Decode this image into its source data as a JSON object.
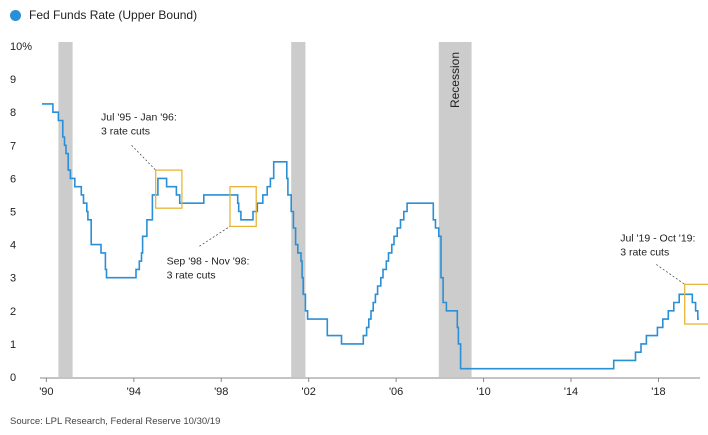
{
  "chart_data": {
    "type": "line",
    "title": "",
    "legend": [
      "Fed Funds Rate (Upper Bound)"
    ],
    "ylabel": "",
    "xlabel": "",
    "y_unit": "%",
    "ylim": [
      0,
      10
    ],
    "xlim": [
      1989.8,
      2019.9
    ],
    "x_ticks": [
      {
        "value": 1990,
        "label": "'90"
      },
      {
        "value": 1994,
        "label": "'94"
      },
      {
        "value": 1998,
        "label": "'98"
      },
      {
        "value": 2002,
        "label": "'02"
      },
      {
        "value": 2006,
        "label": "'06"
      },
      {
        "value": 2010,
        "label": "'10"
      },
      {
        "value": 2014,
        "label": "'14"
      },
      {
        "value": 2018,
        "label": "'18"
      }
    ],
    "y_ticks": [
      {
        "value": 0,
        "label": "0"
      },
      {
        "value": 1,
        "label": "1"
      },
      {
        "value": 2,
        "label": "2"
      },
      {
        "value": 3,
        "label": "3"
      },
      {
        "value": 4,
        "label": "4"
      },
      {
        "value": 5,
        "label": "5"
      },
      {
        "value": 6,
        "label": "6"
      },
      {
        "value": 7,
        "label": "7"
      },
      {
        "value": 8,
        "label": "8"
      },
      {
        "value": 9,
        "label": "9"
      },
      {
        "value": 10,
        "label": "10%"
      }
    ],
    "series": [
      {
        "name": "Fed Funds Rate (Upper Bound)",
        "color": "#2b8fd6",
        "points": [
          [
            1989.8,
            8.25
          ],
          [
            1990.3,
            8.25
          ],
          [
            1990.3,
            8.0
          ],
          [
            1990.55,
            8.0
          ],
          [
            1990.55,
            7.75
          ],
          [
            1990.75,
            7.75
          ],
          [
            1990.75,
            7.25
          ],
          [
            1990.83,
            7.25
          ],
          [
            1990.83,
            7.0
          ],
          [
            1990.9,
            7.0
          ],
          [
            1990.9,
            6.75
          ],
          [
            1991.0,
            6.75
          ],
          [
            1991.0,
            6.25
          ],
          [
            1991.1,
            6.25
          ],
          [
            1991.1,
            6.0
          ],
          [
            1991.3,
            6.0
          ],
          [
            1991.3,
            5.75
          ],
          [
            1991.6,
            5.75
          ],
          [
            1991.6,
            5.5
          ],
          [
            1991.7,
            5.5
          ],
          [
            1991.7,
            5.25
          ],
          [
            1991.85,
            5.25
          ],
          [
            1991.85,
            5.0
          ],
          [
            1991.9,
            5.0
          ],
          [
            1991.9,
            4.75
          ],
          [
            1992.05,
            4.75
          ],
          [
            1992.05,
            4.0
          ],
          [
            1992.5,
            4.0
          ],
          [
            1992.5,
            3.75
          ],
          [
            1992.7,
            3.75
          ],
          [
            1992.7,
            3.25
          ],
          [
            1992.75,
            3.25
          ],
          [
            1992.75,
            3.0
          ],
          [
            1994.1,
            3.0
          ],
          [
            1994.1,
            3.25
          ],
          [
            1994.25,
            3.25
          ],
          [
            1994.25,
            3.5
          ],
          [
            1994.35,
            3.5
          ],
          [
            1994.35,
            3.75
          ],
          [
            1994.4,
            3.75
          ],
          [
            1994.4,
            4.25
          ],
          [
            1994.6,
            4.25
          ],
          [
            1994.6,
            4.75
          ],
          [
            1994.85,
            4.75
          ],
          [
            1994.85,
            5.5
          ],
          [
            1995.1,
            5.5
          ],
          [
            1995.1,
            6.0
          ],
          [
            1995.5,
            6.0
          ],
          [
            1995.5,
            5.75
          ],
          [
            1995.95,
            5.75
          ],
          [
            1995.95,
            5.5
          ],
          [
            1996.1,
            5.5
          ],
          [
            1996.1,
            5.25
          ],
          [
            1997.2,
            5.25
          ],
          [
            1997.2,
            5.5
          ],
          [
            1998.75,
            5.5
          ],
          [
            1998.75,
            5.25
          ],
          [
            1998.8,
            5.25
          ],
          [
            1998.8,
            5.0
          ],
          [
            1998.9,
            5.0
          ],
          [
            1998.9,
            4.75
          ],
          [
            1999.45,
            4.75
          ],
          [
            1999.45,
            5.0
          ],
          [
            1999.65,
            5.0
          ],
          [
            1999.65,
            5.25
          ],
          [
            1999.9,
            5.25
          ],
          [
            1999.9,
            5.5
          ],
          [
            2000.1,
            5.5
          ],
          [
            2000.1,
            5.75
          ],
          [
            2000.25,
            5.75
          ],
          [
            2000.25,
            6.0
          ],
          [
            2000.4,
            6.0
          ],
          [
            2000.4,
            6.5
          ],
          [
            2001.0,
            6.5
          ],
          [
            2001.0,
            6.0
          ],
          [
            2001.05,
            6.0
          ],
          [
            2001.05,
            5.5
          ],
          [
            2001.2,
            5.5
          ],
          [
            2001.2,
            5.0
          ],
          [
            2001.3,
            5.0
          ],
          [
            2001.3,
            4.5
          ],
          [
            2001.4,
            4.5
          ],
          [
            2001.4,
            4.0
          ],
          [
            2001.5,
            4.0
          ],
          [
            2001.5,
            3.75
          ],
          [
            2001.65,
            3.75
          ],
          [
            2001.65,
            3.5
          ],
          [
            2001.7,
            3.5
          ],
          [
            2001.7,
            3.0
          ],
          [
            2001.75,
            3.0
          ],
          [
            2001.75,
            2.5
          ],
          [
            2001.85,
            2.5
          ],
          [
            2001.85,
            2.0
          ],
          [
            2001.95,
            2.0
          ],
          [
            2001.95,
            1.75
          ],
          [
            2002.85,
            1.75
          ],
          [
            2002.85,
            1.25
          ],
          [
            2003.5,
            1.25
          ],
          [
            2003.5,
            1.0
          ],
          [
            2004.5,
            1.0
          ],
          [
            2004.5,
            1.25
          ],
          [
            2004.65,
            1.25
          ],
          [
            2004.65,
            1.5
          ],
          [
            2004.75,
            1.5
          ],
          [
            2004.75,
            1.75
          ],
          [
            2004.85,
            1.75
          ],
          [
            2004.85,
            2.0
          ],
          [
            2004.95,
            2.0
          ],
          [
            2004.95,
            2.25
          ],
          [
            2005.05,
            2.25
          ],
          [
            2005.05,
            2.5
          ],
          [
            2005.15,
            2.5
          ],
          [
            2005.15,
            2.75
          ],
          [
            2005.3,
            2.75
          ],
          [
            2005.3,
            3.0
          ],
          [
            2005.4,
            3.0
          ],
          [
            2005.4,
            3.25
          ],
          [
            2005.55,
            3.25
          ],
          [
            2005.55,
            3.5
          ],
          [
            2005.65,
            3.5
          ],
          [
            2005.65,
            3.75
          ],
          [
            2005.8,
            3.75
          ],
          [
            2005.8,
            4.0
          ],
          [
            2005.9,
            4.0
          ],
          [
            2005.9,
            4.25
          ],
          [
            2006.05,
            4.25
          ],
          [
            2006.05,
            4.5
          ],
          [
            2006.2,
            4.5
          ],
          [
            2006.2,
            4.75
          ],
          [
            2006.35,
            4.75
          ],
          [
            2006.35,
            5.0
          ],
          [
            2006.5,
            5.0
          ],
          [
            2006.5,
            5.25
          ],
          [
            2007.7,
            5.25
          ],
          [
            2007.7,
            4.75
          ],
          [
            2007.8,
            4.75
          ],
          [
            2007.8,
            4.5
          ],
          [
            2007.95,
            4.5
          ],
          [
            2007.95,
            4.25
          ],
          [
            2008.05,
            4.25
          ],
          [
            2008.05,
            3.0
          ],
          [
            2008.15,
            3.0
          ],
          [
            2008.15,
            2.25
          ],
          [
            2008.3,
            2.25
          ],
          [
            2008.3,
            2.0
          ],
          [
            2008.8,
            2.0
          ],
          [
            2008.8,
            1.5
          ],
          [
            2008.85,
            1.5
          ],
          [
            2008.85,
            1.0
          ],
          [
            2008.95,
            1.0
          ],
          [
            2008.95,
            0.25
          ],
          [
            2015.95,
            0.25
          ],
          [
            2015.95,
            0.5
          ],
          [
            2016.95,
            0.5
          ],
          [
            2016.95,
            0.75
          ],
          [
            2017.2,
            0.75
          ],
          [
            2017.2,
            1.0
          ],
          [
            2017.45,
            1.0
          ],
          [
            2017.45,
            1.25
          ],
          [
            2017.95,
            1.25
          ],
          [
            2017.95,
            1.5
          ],
          [
            2018.2,
            1.5
          ],
          [
            2018.2,
            1.75
          ],
          [
            2018.45,
            1.75
          ],
          [
            2018.45,
            2.0
          ],
          [
            2018.7,
            2.0
          ],
          [
            2018.7,
            2.25
          ],
          [
            2018.95,
            2.25
          ],
          [
            2018.95,
            2.5
          ],
          [
            2019.55,
            2.5
          ],
          [
            2019.55,
            2.25
          ],
          [
            2019.7,
            2.25
          ],
          [
            2019.7,
            2.0
          ],
          [
            2019.8,
            2.0
          ],
          [
            2019.8,
            1.75
          ],
          [
            2019.85,
            1.75
          ]
        ]
      }
    ],
    "recessions": [
      {
        "start": 1990.55,
        "end": 1991.2,
        "label": ""
      },
      {
        "start": 2001.2,
        "end": 2001.85,
        "label": ""
      },
      {
        "start": 2007.95,
        "end": 2009.45,
        "label": "Recession"
      }
    ],
    "annotations": [
      {
        "lines": [
          "Jul '95 - Jan '96:",
          "3 rate cuts"
        ],
        "box": {
          "x0": 1995.0,
          "x1": 1996.2,
          "y0": 5.1,
          "y1": 6.25
        },
        "text_at": {
          "x": 1992.5,
          "y": 7.75
        },
        "leader": {
          "x": 1993.9,
          "y": 7.0
        }
      },
      {
        "lines": [
          "Sep '98 - Nov '98:",
          "3 rate cuts"
        ],
        "box": {
          "x0": 1998.4,
          "x1": 1999.6,
          "y0": 4.55,
          "y1": 5.75
        },
        "text_at": {
          "x": 1995.5,
          "y": 3.4
        },
        "leader": {
          "x": 1997.0,
          "y": 3.95
        }
      },
      {
        "lines": [
          "Jul '19 - Oct '19:",
          "3 rate cuts"
        ],
        "box": {
          "x0": 2019.2,
          "x1": 2020.4,
          "y0": 1.6,
          "y1": 2.8
        },
        "text_at": {
          "x": 2016.25,
          "y": 4.1
        },
        "leader": {
          "x": 2017.9,
          "y": 3.4
        }
      }
    ]
  },
  "source_text": "Source: LPL Research, Federal Reserve  10/30/19",
  "colors": {
    "line": "#2b8fd6",
    "recession": "#cccccc",
    "annotation_box": "#e8b53a",
    "axis": "#888888"
  }
}
